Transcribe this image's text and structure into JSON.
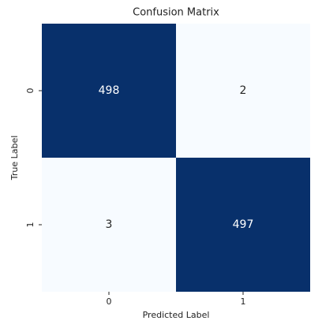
{
  "chart_data": {
    "type": "heatmap",
    "title": "Confusion Matrix",
    "x_label": "Predicted Label",
    "y_label": "True Label",
    "x_categories": [
      "0",
      "1"
    ],
    "y_categories": [
      "0",
      "1"
    ],
    "values": [
      [
        498,
        2
      ],
      [
        3,
        497
      ]
    ],
    "colors": [
      "#f7fbff",
      "#08306b"
    ]
  }
}
